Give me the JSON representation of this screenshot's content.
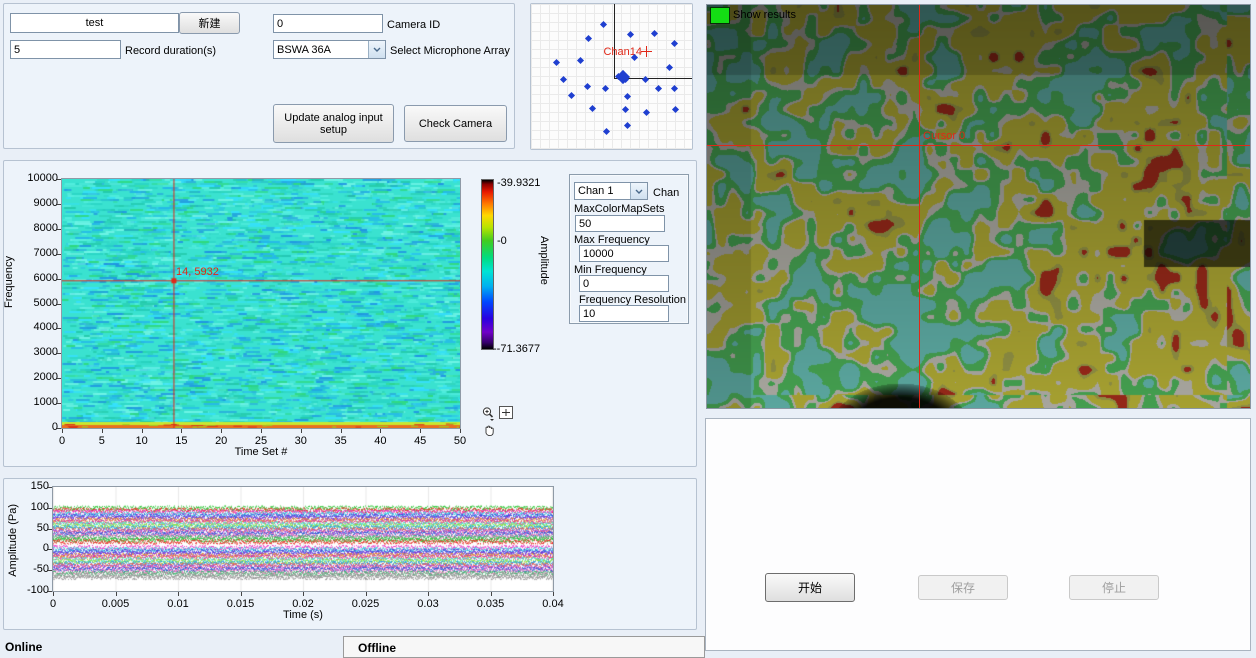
{
  "setup_panel": {
    "project_name": "test",
    "new_button_label": "新建",
    "record_duration_value": "5",
    "record_duration_label": "Record duration(s)",
    "camera_id_value": "0",
    "camera_id_label": "Camera ID",
    "mic_array_value": "BSWA 36A",
    "mic_array_label": "Select Microphone Array",
    "update_analog_button_label": "Update analog input setup",
    "check_camera_button_label": "Check Camera"
  },
  "camera_view": {
    "show_results_label": "Show results",
    "indicator_color": "#14dd14",
    "cursor_label": "Cursor 0",
    "cursor_color": "#e02818"
  },
  "spectro_controls": {
    "chan_value": "Chan 1",
    "chan_label": "Chan",
    "max_colormap_label": "MaxColorMapSets",
    "max_colormap_value": "50",
    "max_freq_label": "Max Frequency",
    "max_freq_value": "10000",
    "min_freq_label": "Min Frequency",
    "min_freq_value": "0",
    "freq_res_label": "Frequency Resolution",
    "freq_res_value": "10"
  },
  "status_bar": {
    "online_label": "Online",
    "offline_label": "Offline"
  },
  "action_panel": {
    "start_label": "开始",
    "save_label": "保存",
    "stop_label": "停止"
  },
  "chart_data": [
    {
      "type": "scatter",
      "name": "microphone-array-layout",
      "point_color": "#1f3fd0",
      "highlight": {
        "label": "Chan14",
        "x": 0.712,
        "y": 0.327,
        "color": "#e02818"
      },
      "center_point": [
        0.57,
        0.5
      ],
      "points": [
        [
          0.45,
          0.14
        ],
        [
          0.62,
          0.21
        ],
        [
          0.77,
          0.2
        ],
        [
          0.36,
          0.24
        ],
        [
          0.89,
          0.27
        ],
        [
          0.64,
          0.37
        ],
        [
          0.31,
          0.39
        ],
        [
          0.16,
          0.4
        ],
        [
          0.86,
          0.44
        ],
        [
          0.71,
          0.52
        ],
        [
          0.2,
          0.52
        ],
        [
          0.35,
          0.57
        ],
        [
          0.46,
          0.58
        ],
        [
          0.79,
          0.58
        ],
        [
          0.89,
          0.58
        ],
        [
          0.25,
          0.63
        ],
        [
          0.6,
          0.64
        ],
        [
          0.38,
          0.72
        ],
        [
          0.59,
          0.73
        ],
        [
          0.72,
          0.75
        ],
        [
          0.9,
          0.73
        ],
        [
          0.47,
          0.88
        ],
        [
          0.6,
          0.84
        ],
        [
          0.545,
          0.5
        ],
        [
          0.59,
          0.52
        ]
      ]
    },
    {
      "type": "heatmap",
      "name": "spectrogram",
      "xlabel": "Time Set #",
      "ylabel": "Frequency",
      "xlim": [
        0,
        50
      ],
      "ylim": [
        0,
        10000
      ],
      "x_ticks": [
        "0",
        "5",
        "10",
        "15",
        "20",
        "25",
        "30",
        "35",
        "40",
        "45",
        "50"
      ],
      "y_ticks": [
        "0",
        "1000",
        "2000",
        "3000",
        "4000",
        "5000",
        "6000",
        "7000",
        "8000",
        "9000",
        "10000"
      ],
      "base_color": "#3ae2d0",
      "cursor": {
        "x": 14,
        "y": 5932,
        "label": "14, 5932"
      },
      "colorbar": {
        "label": "Amplitude",
        "max_label": "-39.9321",
        "mid_label": "-0",
        "min_label": "--71.3677"
      }
    },
    {
      "type": "line",
      "name": "time-domain-waveform",
      "xlabel": "Time (s)",
      "ylabel": "Amplitude (Pa)",
      "xlim": [
        0,
        0.04
      ],
      "ylim": [
        -100,
        150
      ],
      "x_ticks": [
        "0",
        "0.005",
        "0.01",
        "0.015",
        "0.02",
        "0.025",
        "0.03",
        "0.035",
        "0.04"
      ],
      "y_ticks": [
        "-100",
        "-50",
        "0",
        "50",
        "100",
        "150"
      ],
      "n_channels": 36,
      "trace_band": [
        100,
        -66
      ],
      "colors": [
        "#30c838",
        "#e83028",
        "#e838c8",
        "#38d8e0",
        "#3848e0",
        "#8838d8",
        "#e89028",
        "#d838a0",
        "#48e8d0",
        "#98e038",
        "#2898e8",
        "#e85858",
        "#b048e0",
        "#2060d0",
        "#f070b8",
        "#40b870"
      ]
    }
  ]
}
